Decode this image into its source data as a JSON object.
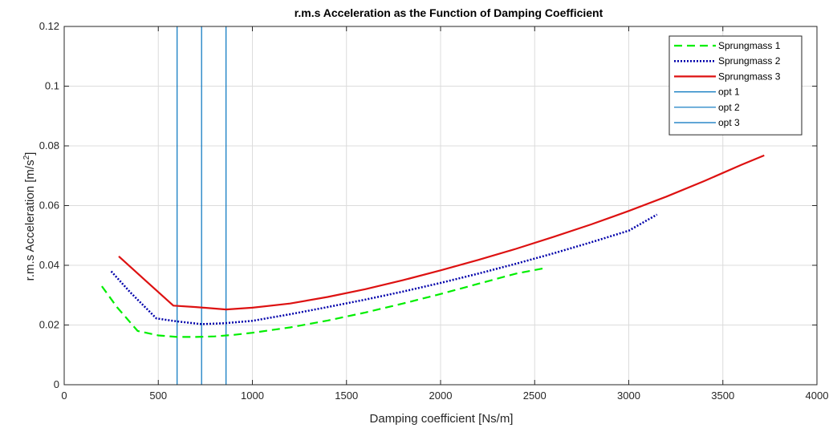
{
  "chart_data": {
    "type": "line",
    "title": "r.m.s Acceleration as the Function of Damping Coefficient",
    "xlabel": "Damping coefficient [Ns/m]",
    "ylabel_main": "r.m.s Acceleration [m/s",
    "ylabel_sup": "2",
    "ylabel_tail": "]",
    "xlim": [
      0,
      4000
    ],
    "ylim": [
      0,
      0.12
    ],
    "xticks": [
      0,
      500,
      1000,
      1500,
      2000,
      2500,
      3000,
      3500,
      4000
    ],
    "yticks": [
      0,
      0.02,
      0.04,
      0.06,
      0.08,
      0.1,
      0.12
    ],
    "ytick_labels": [
      "0",
      "0.02",
      "0.04",
      "0.06",
      "0.08",
      "0.1",
      "0.12"
    ],
    "grid": true,
    "legend_position": "top-right",
    "series": [
      {
        "name": "Sprungmass 1",
        "color": "#00ee00",
        "style": "dashed",
        "x": [
          200,
          280,
          390,
          500,
          600,
          700,
          800,
          900,
          1000,
          1200,
          1400,
          1600,
          1800,
          2000,
          2200,
          2400,
          2550
        ],
        "y": [
          0.033,
          0.026,
          0.018,
          0.0165,
          0.016,
          0.016,
          0.0162,
          0.0167,
          0.0174,
          0.0192,
          0.0215,
          0.0242,
          0.0272,
          0.0304,
          0.0338,
          0.0372,
          0.039
        ]
      },
      {
        "name": "Sprungmass 2",
        "color": "#0000aa",
        "style": "dotted",
        "x": [
          250,
          350,
          490,
          600,
          730,
          850,
          1000,
          1200,
          1400,
          1600,
          1800,
          2000,
          2200,
          2400,
          2600,
          2800,
          3000,
          3150
        ],
        "y": [
          0.038,
          0.031,
          0.0222,
          0.0212,
          0.0203,
          0.0206,
          0.0214,
          0.0236,
          0.026,
          0.0285,
          0.0312,
          0.0341,
          0.0372,
          0.0405,
          0.044,
          0.0477,
          0.0516,
          0.057
        ]
      },
      {
        "name": "Sprungmass 3",
        "color": "#dd1111",
        "style": "solid",
        "x": [
          290,
          430,
          580,
          700,
          860,
          1000,
          1200,
          1400,
          1600,
          1800,
          2000,
          2200,
          2400,
          2600,
          2800,
          3000,
          3200,
          3400,
          3600,
          3720
        ],
        "y": [
          0.043,
          0.035,
          0.0265,
          0.026,
          0.0252,
          0.0258,
          0.0272,
          0.0294,
          0.032,
          0.035,
          0.0383,
          0.0418,
          0.0455,
          0.0495,
          0.0537,
          0.0582,
          0.063,
          0.0682,
          0.0737,
          0.0768
        ]
      }
    ],
    "vertical_lines": [
      {
        "name": "opt 1",
        "x": 600,
        "color": "#0072bd"
      },
      {
        "name": "opt 2",
        "x": 730,
        "color": "#0072bd"
      },
      {
        "name": "opt 3",
        "x": 860,
        "color": "#0072bd"
      }
    ]
  }
}
